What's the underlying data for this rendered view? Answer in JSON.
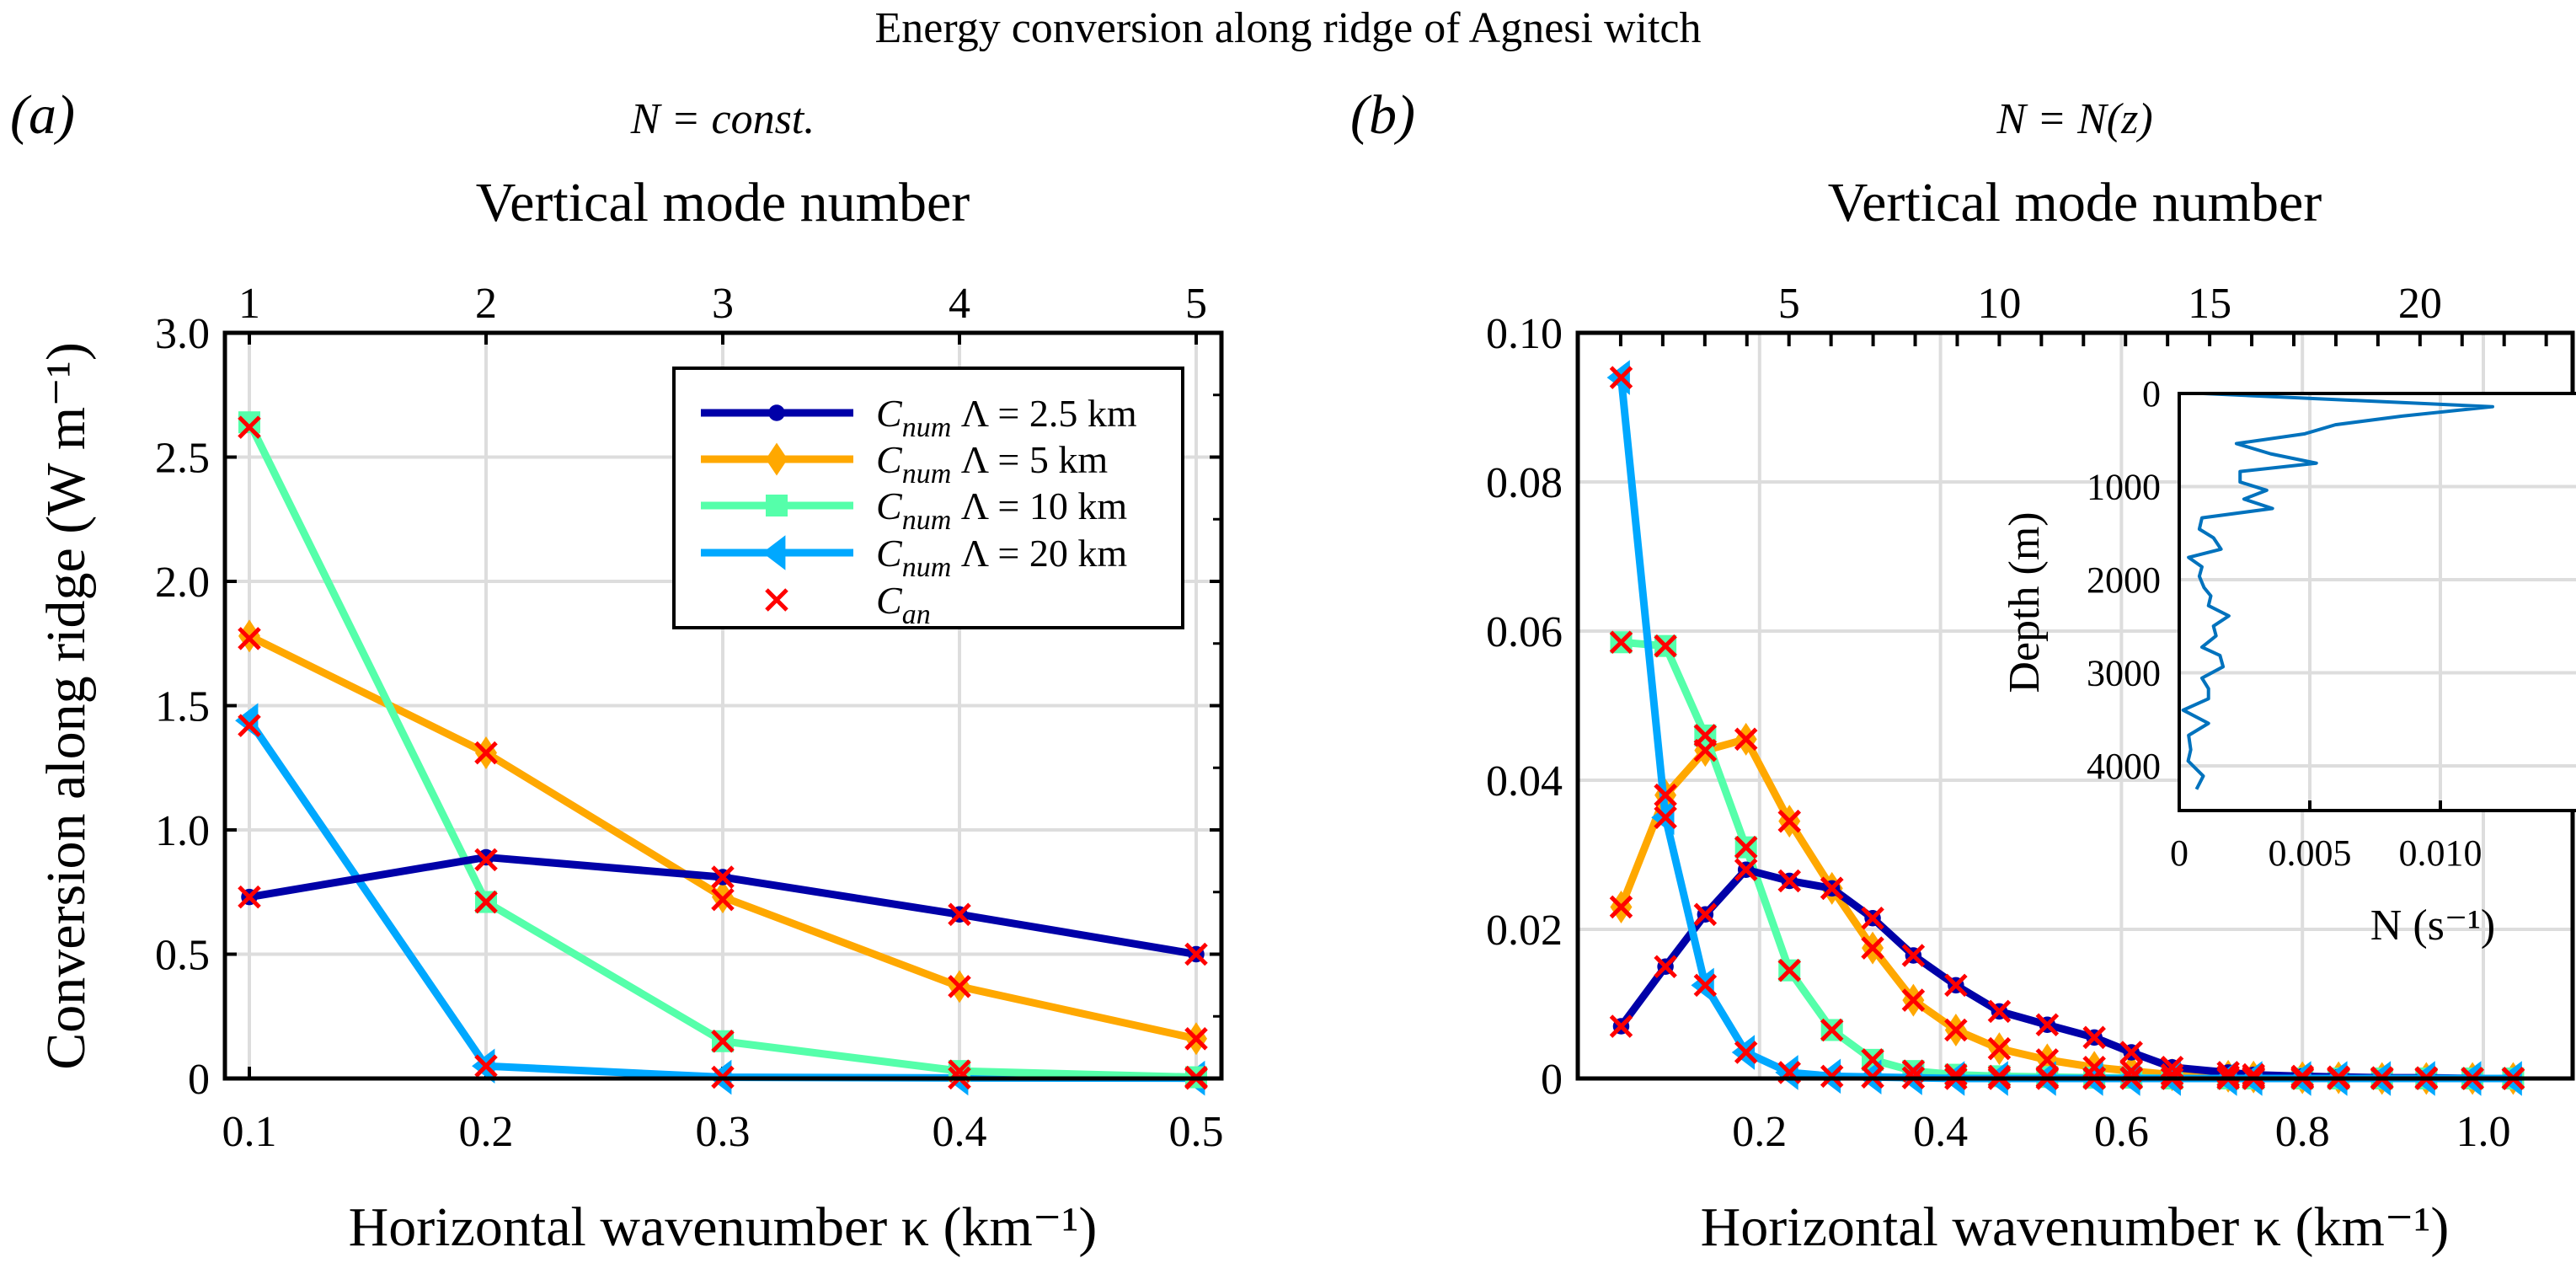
{
  "figure": {
    "title": "Energy conversion along ridge of Agnesi witch"
  },
  "colors": {
    "lambda_2_5": "#0000a8",
    "lambda_5": "#ffa800",
    "lambda_10": "#55ffaa",
    "lambda_20": "#00a8ff",
    "c_an": "#ff0000",
    "inset_line": "#0072bd",
    "grid": "#dddddd"
  },
  "chart_data": [
    {
      "panel": "(a)",
      "type": "line",
      "title": "N = const.",
      "xlabel": "Horizontal wavenumber κ (km⁻¹)",
      "ylabel": "Conversion along ridge (W m⁻¹)",
      "top_xlabel": "Vertical mode number",
      "xlim": [
        0.09,
        0.51
      ],
      "ylim": [
        0,
        3.0
      ],
      "xticks": [
        0.1,
        0.2,
        0.3,
        0.4,
        0.5
      ],
      "xtick_labels": [
        "0.1",
        "0.2",
        "0.3",
        "0.4",
        "0.5"
      ],
      "yticks": [
        0,
        0.5,
        1.0,
        1.5,
        2.0,
        2.5,
        3.0
      ],
      "ytick_labels": [
        "0",
        "0.5",
        "1.0",
        "1.5",
        "2.0",
        "2.5",
        "3.0"
      ],
      "top_ticks": [
        0.1,
        0.2,
        0.3,
        0.4,
        0.5
      ],
      "top_tick_labels": [
        "1",
        "2",
        "3",
        "4",
        "5"
      ],
      "grid": true,
      "legend_position": "top-right",
      "x": [
        0.1,
        0.2,
        0.3,
        0.4,
        0.5
      ],
      "series": [
        {
          "name": "C_num Λ = 2.5 km",
          "sub": "num",
          "lambda": "2.5 km",
          "marker": "circle",
          "color_key": "lambda_2_5",
          "values": [
            0.73,
            0.89,
            0.81,
            0.66,
            0.5
          ]
        },
        {
          "name": "C_num Λ = 5 km",
          "sub": "num",
          "lambda": "5 km",
          "marker": "diamond",
          "color_key": "lambda_5",
          "values": [
            1.78,
            1.31,
            0.73,
            0.37,
            0.16
          ]
        },
        {
          "name": "C_num Λ = 10 km",
          "sub": "num",
          "lambda": "10 km",
          "marker": "square",
          "color_key": "lambda_10",
          "values": [
            2.64,
            0.71,
            0.15,
            0.03,
            0.005
          ]
        },
        {
          "name": "C_num Λ = 20 km",
          "sub": "num",
          "lambda": "20 km",
          "marker": "triangle-left",
          "color_key": "lambda_20",
          "values": [
            1.44,
            0.05,
            0.005,
            0.002,
            0.001
          ]
        }
      ],
      "analytic": {
        "name": "C_an",
        "sub": "an",
        "marker": "x",
        "color_key": "c_an",
        "values": [
          [
            0.73,
            1.77,
            2.62,
            1.42
          ],
          [
            0.88,
            1.31,
            0.71,
            0.05
          ],
          [
            0.81,
            0.72,
            0.15,
            0.005
          ],
          [
            0.66,
            0.37,
            0.03,
            0.002
          ],
          [
            0.5,
            0.16,
            0.005,
            0.001
          ]
        ]
      }
    },
    {
      "panel": "(b)",
      "type": "line",
      "title": "N = N(z)",
      "xlabel": "Horizontal wavenumber κ (km⁻¹)",
      "top_xlabel": "Vertical mode number",
      "xlim": [
        0,
        1.1
      ],
      "ylim": [
        0,
        0.1
      ],
      "xticks": [
        0.2,
        0.4,
        0.6,
        0.8,
        1.0
      ],
      "xtick_labels": [
        "0.2",
        "0.4",
        "0.6",
        "0.8",
        "1.0"
      ],
      "yticks": [
        0,
        0.02,
        0.04,
        0.06,
        0.08,
        0.1
      ],
      "ytick_labels": [
        "0",
        "0.02",
        "0.04",
        "0.06",
        "0.08",
        "0.10"
      ],
      "top_major": [
        5,
        10,
        15,
        20
      ],
      "top_tick_labels": [
        "5",
        "10",
        "15",
        "20"
      ],
      "mode_kappa_step": 0.0465,
      "grid": true,
      "x": [
        0.047,
        0.096,
        0.14,
        0.185,
        0.233,
        0.28,
        0.325,
        0.37,
        0.417,
        0.465,
        0.518,
        0.57,
        0.611,
        0.656,
        0.718,
        0.746,
        0.8,
        0.84,
        0.888,
        0.937,
        0.988,
        1.033
      ],
      "series": [
        {
          "name": "C_num Λ = 2.5 km",
          "marker": "circle",
          "color_key": "lambda_2_5",
          "values": [
            0.007,
            0.015,
            0.022,
            0.028,
            0.0265,
            0.0255,
            0.0215,
            0.0165,
            0.0125,
            0.009,
            0.0072,
            0.0055,
            0.0035,
            0.0015,
            0.0008,
            0.0005,
            0.0003,
            0.0002,
            0.0001,
            0.0001,
            0.0,
            0.0
          ]
        },
        {
          "name": "C_num Λ = 5 km",
          "marker": "diamond",
          "color_key": "lambda_5",
          "values": [
            0.023,
            0.038,
            0.044,
            0.0455,
            0.0345,
            0.0255,
            0.0175,
            0.0105,
            0.0065,
            0.004,
            0.0025,
            0.0015,
            0.001,
            0.0005,
            0.0003,
            0.0002,
            0.0001,
            0.0001,
            0.0,
            0.0,
            0.0,
            0.0
          ]
        },
        {
          "name": "C_num Λ = 10 km",
          "marker": "square",
          "color_key": "lambda_10",
          "values": [
            0.0585,
            0.058,
            0.046,
            0.031,
            0.0145,
            0.0065,
            0.0025,
            0.001,
            0.0005,
            0.0003,
            0.0002,
            0.0001,
            0.0001,
            0.0,
            0.0,
            0.0,
            0.0,
            0.0,
            0.0,
            0.0,
            0.0,
            0.0
          ]
        },
        {
          "name": "C_num Λ = 20 km",
          "marker": "triangle-left",
          "color_key": "lambda_20",
          "values": [
            0.094,
            0.035,
            0.0125,
            0.0035,
            0.0008,
            0.0003,
            0.0002,
            0.0001,
            0.0,
            0.0,
            0.0,
            0.0,
            0.0,
            0.0,
            0.0,
            0.0,
            0.0,
            0.0,
            0.0,
            0.0,
            0.0,
            0.0
          ]
        }
      ],
      "analytic_note": "C_an crosses coincide with each C_num marker"
    },
    {
      "panel": "(b) inset",
      "type": "line",
      "xlabel": "N (s⁻¹)",
      "ylabel": "Depth (m)",
      "xlim": [
        0,
        0.013
      ],
      "ylim": [
        4500,
        0
      ],
      "xticks": [
        0,
        0.005,
        0.01
      ],
      "xtick_labels": [
        "0",
        "0.005",
        "0.010"
      ],
      "yticks": [
        0,
        1000,
        2000,
        3000,
        4000
      ],
      "ytick_labels": [
        "0",
        "1000",
        "2000",
        "3000",
        "4000"
      ],
      "grid": true,
      "N": [
        0.00092,
        0.012,
        0.00853,
        0.00598,
        0.00481,
        0.00219,
        0.0035,
        0.00525,
        0.00233,
        0.00233,
        0.00335,
        0.00248,
        0.00357,
        0.00087,
        0.00077,
        0.00131,
        0.0016,
        0.00036,
        0.00087,
        0.00077,
        0.00095,
        0.00121,
        0.00112,
        0.0019,
        0.00131,
        0.00141,
        0.00087,
        0.00156,
        0.00168,
        0.00087,
        0.00112,
        0.00112,
        0.00015,
        0.00112,
        0.00036,
        0.00044,
        0.00034,
        0.00092,
        0.00066
      ],
      "depth": [
        0,
        142,
        243,
        336,
        433,
        538,
        648,
        749,
        838,
        951,
        1040,
        1134,
        1235,
        1336,
        1457,
        1550,
        1672,
        1761,
        1862,
        1964,
        2085,
        2174,
        2279,
        2389,
        2498,
        2603,
        2725,
        2814,
        2935,
        3057,
        3170,
        3279,
        3401,
        3543,
        3672,
        3826,
        3947,
        4109,
        4251
      ]
    }
  ]
}
